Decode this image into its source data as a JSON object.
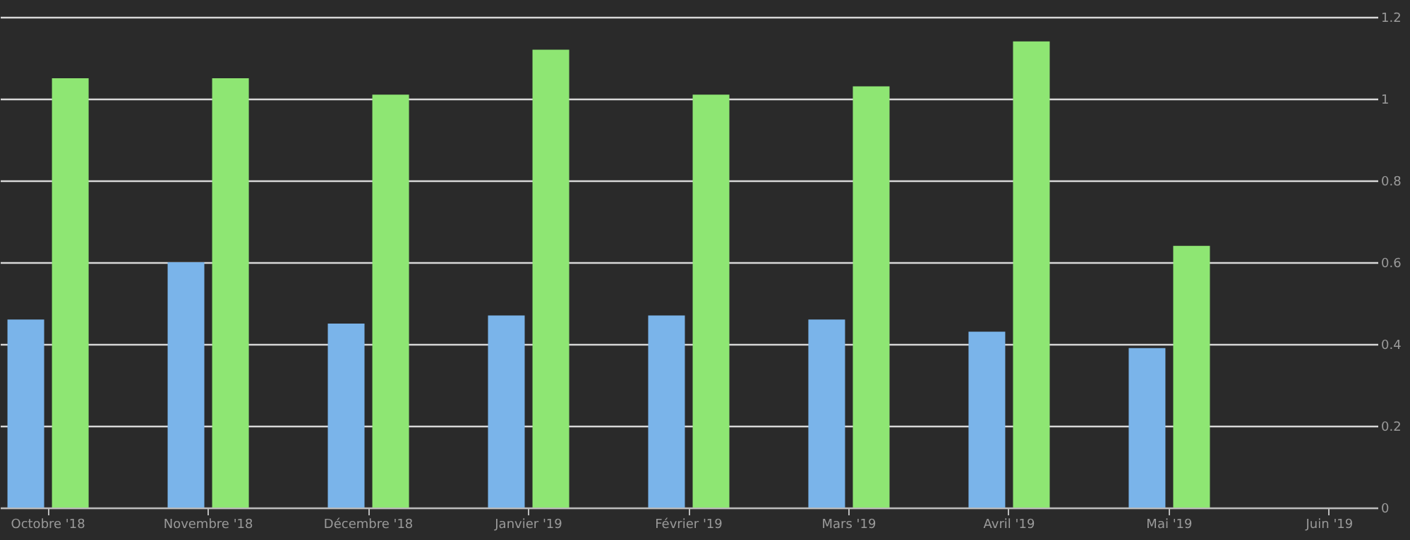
{
  "chart_data": {
    "type": "bar",
    "categories": [
      "Octobre '18",
      "Novembre '18",
      "Décembre '18",
      "Janvier '19",
      "Février '19",
      "Mars '19",
      "Avril '19",
      "Mai '19",
      "Juin '19"
    ],
    "series": [
      {
        "color": "#7ab4ea",
        "values": [
          0.46,
          0.6,
          0.45,
          0.47,
          0.47,
          0.46,
          0.43,
          0.39,
          null
        ]
      },
      {
        "color": "#8ee673",
        "values": [
          1.05,
          1.05,
          1.01,
          1.12,
          1.01,
          1.03,
          1.14,
          0.64,
          null
        ]
      }
    ],
    "ylim": [
      0,
      1.2
    ],
    "yticks": [
      0,
      0.2,
      0.4,
      0.6,
      0.8,
      1,
      1.2
    ],
    "grid": "y"
  }
}
